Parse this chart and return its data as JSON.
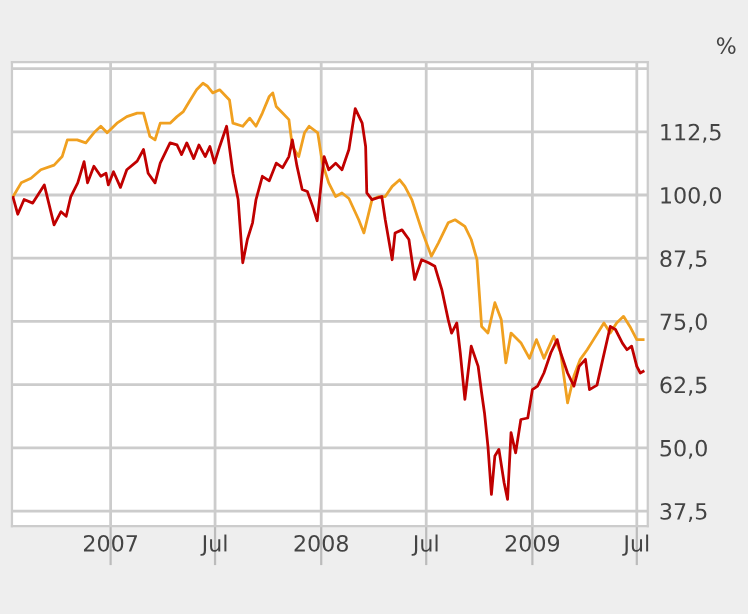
{
  "chart_data": {
    "type": "line",
    "ylabel": "%",
    "xlim": [
      "2006-07-14",
      "2009-07-20"
    ],
    "xticks": [
      {
        "value": "2007-01-01",
        "label": "2007"
      },
      {
        "value": "2007-07-01",
        "label": "Jul"
      },
      {
        "value": "2008-01-01",
        "label": "2008"
      },
      {
        "value": "2008-07-01",
        "label": "Jul"
      },
      {
        "value": "2009-01-01",
        "label": "2009"
      },
      {
        "value": "2009-07-01",
        "label": "Jul"
      }
    ],
    "ylim": [
      34.5,
      126.3
    ],
    "yticks": [
      {
        "value": 37.5,
        "label": "37,5"
      },
      {
        "value": 50,
        "label": "50,0"
      },
      {
        "value": 62.5,
        "label": "62,5"
      },
      {
        "value": 75,
        "label": "75,0"
      },
      {
        "value": 87.5,
        "label": "87,5"
      },
      {
        "value": 100,
        "label": "100,0"
      },
      {
        "value": 112.5,
        "label": "112,5"
      },
      {
        "value": 125,
        "label": null
      }
    ],
    "grid": true,
    "line_style": "solid",
    "marker": "none",
    "series": [
      {
        "color": "#f0a020",
        "x": [
          "2006-07-16",
          "2006-07-30",
          "2006-08-16",
          "2006-09-02",
          "2006-09-25",
          "2006-10-09",
          "2006-10-18",
          "2006-11-04",
          "2006-11-19",
          "2006-12-03",
          "2006-12-15",
          "2006-12-26",
          "2007-01-12",
          "2007-01-29",
          "2007-02-16",
          "2007-02-27",
          "2007-03-10",
          "2007-03-19",
          "2007-03-28",
          "2007-04-14",
          "2007-04-26",
          "2007-05-07",
          "2007-05-19",
          "2007-05-30",
          "2007-06-10",
          "2007-06-18",
          "2007-06-27",
          "2007-07-09",
          "2007-07-26",
          "2007-08-01",
          "2007-08-18",
          "2007-08-30",
          "2007-09-10",
          "2007-09-21",
          "2007-10-03",
          "2007-10-09",
          "2007-10-15",
          "2007-10-26",
          "2007-11-06",
          "2007-11-12",
          "2007-11-23",
          "2007-12-03",
          "2007-12-11",
          "2007-12-26",
          "2008-01-03",
          "2008-01-14",
          "2008-01-26",
          "2008-02-06",
          "2008-02-18",
          "2008-03-06",
          "2008-03-15",
          "2008-03-29",
          "2008-04-10",
          "2008-04-21",
          "2008-05-03",
          "2008-05-16",
          "2008-05-25",
          "2008-06-06",
          "2008-06-23",
          "2008-07-10",
          "2008-07-22",
          "2008-08-08",
          "2008-08-20",
          "2008-09-06",
          "2008-09-17",
          "2008-09-27",
          "2008-10-05",
          "2008-10-16",
          "2008-10-28",
          "2008-11-08",
          "2008-11-16",
          "2008-11-25",
          "2008-12-12",
          "2008-12-27",
          "2009-01-08",
          "2009-01-21",
          "2009-02-07",
          "2009-02-19",
          "2009-03-03",
          "2009-03-14",
          "2009-03-25",
          "2009-04-06",
          "2009-04-17",
          "2009-05-05",
          "2009-05-16",
          "2009-05-27",
          "2009-06-08",
          "2009-06-19",
          "2009-07-01",
          "2009-07-12"
        ],
        "values": [
          99.7,
          102.4,
          103.3,
          105.0,
          105.9,
          107.6,
          110.9,
          110.9,
          110.3,
          112.3,
          113.6,
          112.3,
          114.2,
          115.5,
          116.2,
          116.2,
          111.6,
          110.9,
          114.2,
          114.2,
          115.5,
          116.5,
          118.8,
          120.8,
          122.1,
          121.5,
          120.2,
          120.8,
          118.8,
          114.2,
          113.6,
          115.2,
          113.6,
          116.2,
          119.5,
          120.2,
          117.5,
          116.2,
          114.9,
          109.6,
          107.6,
          112.3,
          113.6,
          112.3,
          106.3,
          102.4,
          99.7,
          100.4,
          99.3,
          95.1,
          92.5,
          99.1,
          99.7,
          99.7,
          101.7,
          103.0,
          101.7,
          99.1,
          93.1,
          87.9,
          90.5,
          94.5,
          95.1,
          93.8,
          91.2,
          87.2,
          74.0,
          72.7,
          78.7,
          75.4,
          66.8,
          72.7,
          70.8,
          67.7,
          71.4,
          67.7,
          72.1,
          68.8,
          58.9,
          64.2,
          67.5,
          69.4,
          71.4,
          74.7,
          72.7,
          74.7,
          76.0,
          74.0,
          71.4,
          71.4
        ]
      },
      {
        "color": "#c00000",
        "x": [
          "2006-07-16",
          "2006-07-24",
          "2006-08-04",
          "2006-08-19",
          "2006-09-08",
          "2006-09-25",
          "2006-10-07",
          "2006-10-16",
          "2006-10-24",
          "2006-11-05",
          "2006-11-16",
          "2006-11-22",
          "2006-12-03",
          "2006-12-15",
          "2006-12-24",
          "2006-12-28",
          "2007-01-06",
          "2007-01-18",
          "2007-01-29",
          "2007-02-16",
          "2007-02-27",
          "2007-03-07",
          "2007-03-19",
          "2007-03-28",
          "2007-04-14",
          "2007-04-26",
          "2007-05-04",
          "2007-05-13",
          "2007-05-25",
          "2007-06-03",
          "2007-06-14",
          "2007-06-22",
          "2007-06-30",
          "2007-07-09",
          "2007-07-21",
          "2007-08-01",
          "2007-08-10",
          "2007-08-18",
          "2007-08-26",
          "2007-09-04",
          "2007-09-10",
          "2007-09-21",
          "2007-10-03",
          "2007-10-15",
          "2007-10-26",
          "2007-11-06",
          "2007-11-12",
          "2007-11-20",
          "2007-11-29",
          "2007-12-08",
          "2007-12-17",
          "2007-12-25",
          "2008-01-06",
          "2008-01-14",
          "2008-01-26",
          "2008-02-06",
          "2008-02-18",
          "2008-02-29",
          "2008-03-12",
          "2008-03-18",
          "2008-03-20",
          "2008-03-29",
          "2008-04-15",
          "2008-04-21",
          "2008-05-03",
          "2008-05-08",
          "2008-05-20",
          "2008-06-01",
          "2008-06-11",
          "2008-06-23",
          "2008-07-05",
          "2008-07-16",
          "2008-07-28",
          "2008-08-08",
          "2008-08-14",
          "2008-08-23",
          "2008-08-29",
          "2008-09-06",
          "2008-09-17",
          "2008-09-29",
          "2008-10-05",
          "2008-10-10",
          "2008-10-16",
          "2008-10-22",
          "2008-10-28",
          "2008-11-04",
          "2008-11-13",
          "2008-11-19",
          "2008-11-25",
          "2008-12-03",
          "2008-12-12",
          "2008-12-24",
          "2009-01-01",
          "2009-01-10",
          "2009-01-21",
          "2009-02-02",
          "2009-02-13",
          "2009-02-19",
          "2009-03-03",
          "2009-03-14",
          "2009-03-23",
          "2009-04-03",
          "2009-04-10",
          "2009-04-23",
          "2009-05-03",
          "2009-05-16",
          "2009-05-25",
          "2009-06-06",
          "2009-06-14",
          "2009-06-22",
          "2009-07-01",
          "2009-07-07",
          "2009-07-12"
        ],
        "values": [
          99.5,
          96.2,
          99.1,
          98.4,
          102.0,
          94.1,
          96.7,
          95.8,
          99.7,
          102.4,
          106.6,
          102.4,
          105.7,
          103.7,
          104.3,
          102.0,
          104.6,
          101.5,
          105.0,
          106.7,
          109.0,
          104.3,
          102.4,
          106.3,
          110.3,
          109.9,
          108.0,
          110.3,
          107.2,
          109.9,
          107.6,
          109.6,
          106.3,
          109.6,
          113.6,
          104.3,
          99.1,
          86.6,
          91.2,
          94.5,
          99.1,
          103.7,
          102.8,
          106.3,
          105.4,
          107.6,
          110.9,
          105.7,
          101.1,
          100.7,
          97.8,
          94.9,
          107.6,
          105.0,
          106.3,
          105.0,
          109.0,
          117.1,
          114.2,
          109.6,
          100.4,
          99.1,
          99.7,
          95.1,
          87.2,
          92.5,
          93.1,
          91.2,
          83.3,
          87.2,
          86.6,
          85.9,
          81.3,
          75.4,
          72.7,
          74.7,
          68.8,
          59.6,
          70.1,
          66.1,
          60.9,
          56.9,
          50.3,
          40.8,
          48.4,
          49.7,
          43.1,
          39.8,
          53.0,
          49.0,
          55.6,
          55.9,
          61.5,
          62.2,
          64.8,
          68.8,
          71.4,
          68.8,
          64.8,
          62.2,
          66.1,
          67.5,
          61.5,
          62.4,
          67.5,
          74.0,
          73.4,
          70.7,
          69.4,
          70.1,
          66.1,
          64.8,
          65.1
        ]
      }
    ]
  }
}
